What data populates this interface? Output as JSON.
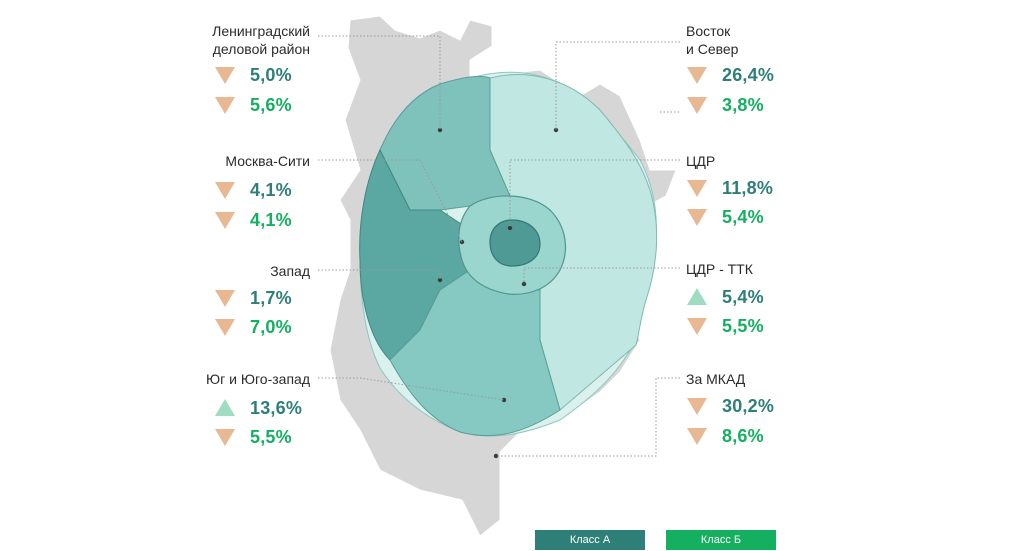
{
  "colors": {
    "class_a": "#2e7f78",
    "class_b": "#14b060",
    "decrease": "#e8b893",
    "increase": "#9fdcc1",
    "map_outside": "#d4d4d4",
    "zone_dark": "#5aa8a1",
    "zone_mid": "#86c9c2",
    "zone_light": "#b9e3de",
    "zone_pale": "#dbf1ee"
  },
  "districts": [
    {
      "name": "Ленинградский\nделовой район",
      "class_a": {
        "value": "5,0%",
        "trend": "down"
      },
      "class_b": {
        "value": "5,6%",
        "trend": "down"
      }
    },
    {
      "name": "Москва-Сити",
      "class_a": {
        "value": "4,1%",
        "trend": "down"
      },
      "class_b": {
        "value": "4,1%",
        "trend": "down"
      }
    },
    {
      "name": "Запад",
      "class_a": {
        "value": "1,7%",
        "trend": "down"
      },
      "class_b": {
        "value": "7,0%",
        "trend": "down"
      }
    },
    {
      "name": "Юг и Юго-запад",
      "class_a": {
        "value": "13,6%",
        "trend": "up"
      },
      "class_b": {
        "value": "5,5%",
        "trend": "down"
      }
    },
    {
      "name": "Восток\nи Север",
      "class_a": {
        "value": "26,4%",
        "trend": "down"
      },
      "class_b": {
        "value": "3,8%",
        "trend": "down"
      }
    },
    {
      "name": "ЦДР",
      "class_a": {
        "value": "11,8%",
        "trend": "down"
      },
      "class_b": {
        "value": "5,4%",
        "trend": "down"
      }
    },
    {
      "name": "ЦДР - ТТК",
      "class_a": {
        "value": "5,4%",
        "trend": "up"
      },
      "class_b": {
        "value": "5,5%",
        "trend": "down"
      }
    },
    {
      "name": "За МКАД",
      "class_a": {
        "value": "30,2%",
        "trend": "down"
      },
      "class_b": {
        "value": "8,6%",
        "trend": "down"
      }
    }
  ],
  "legend": {
    "class_a_label": "Класс А",
    "class_b_label": "Класс Б"
  }
}
